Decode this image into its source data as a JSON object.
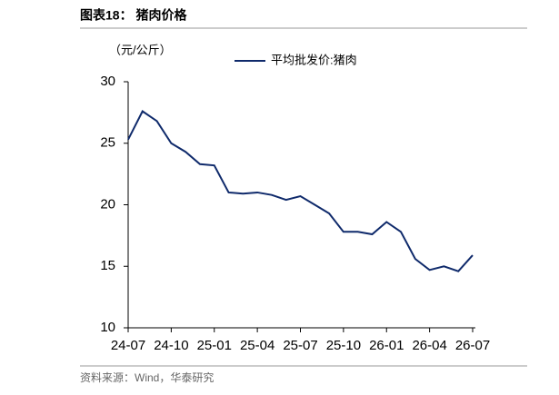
{
  "chart_data": {
    "type": "line",
    "title": "图表18： 猪肉价格",
    "y_label": "（元/公斤）",
    "source": "资料来源：Wind，华泰研究",
    "x": [
      "24-07",
      "24-08",
      "24-09",
      "24-10",
      "24-11",
      "24-12",
      "25-01",
      "25-02",
      "25-03",
      "25-04",
      "25-05",
      "25-06",
      "25-07",
      "25-08",
      "25-09",
      "25-10",
      "25-11",
      "25-12",
      "26-01",
      "26-02",
      "26-03",
      "26-04",
      "26-05",
      "26-06",
      "26-07"
    ],
    "xticks": [
      "24-07",
      "24-10",
      "25-01",
      "25-04",
      "25-07",
      "25-10",
      "26-01",
      "26-04",
      "26-07"
    ],
    "series": [
      {
        "name": "平均批发价:猪肉",
        "color": "#0f2a6b",
        "values": [
          25.3,
          27.6,
          26.8,
          25.0,
          24.3,
          23.3,
          23.2,
          21.0,
          20.9,
          21.0,
          20.8,
          20.4,
          20.7,
          20.0,
          19.3,
          17.8,
          17.8,
          17.6,
          18.6,
          17.8,
          15.6,
          14.7,
          15.0,
          14.6,
          15.9
        ]
      }
    ],
    "ylim": [
      10,
      30
    ],
    "yticks": [
      10,
      15,
      20,
      25,
      30
    ],
    "grid": false
  }
}
